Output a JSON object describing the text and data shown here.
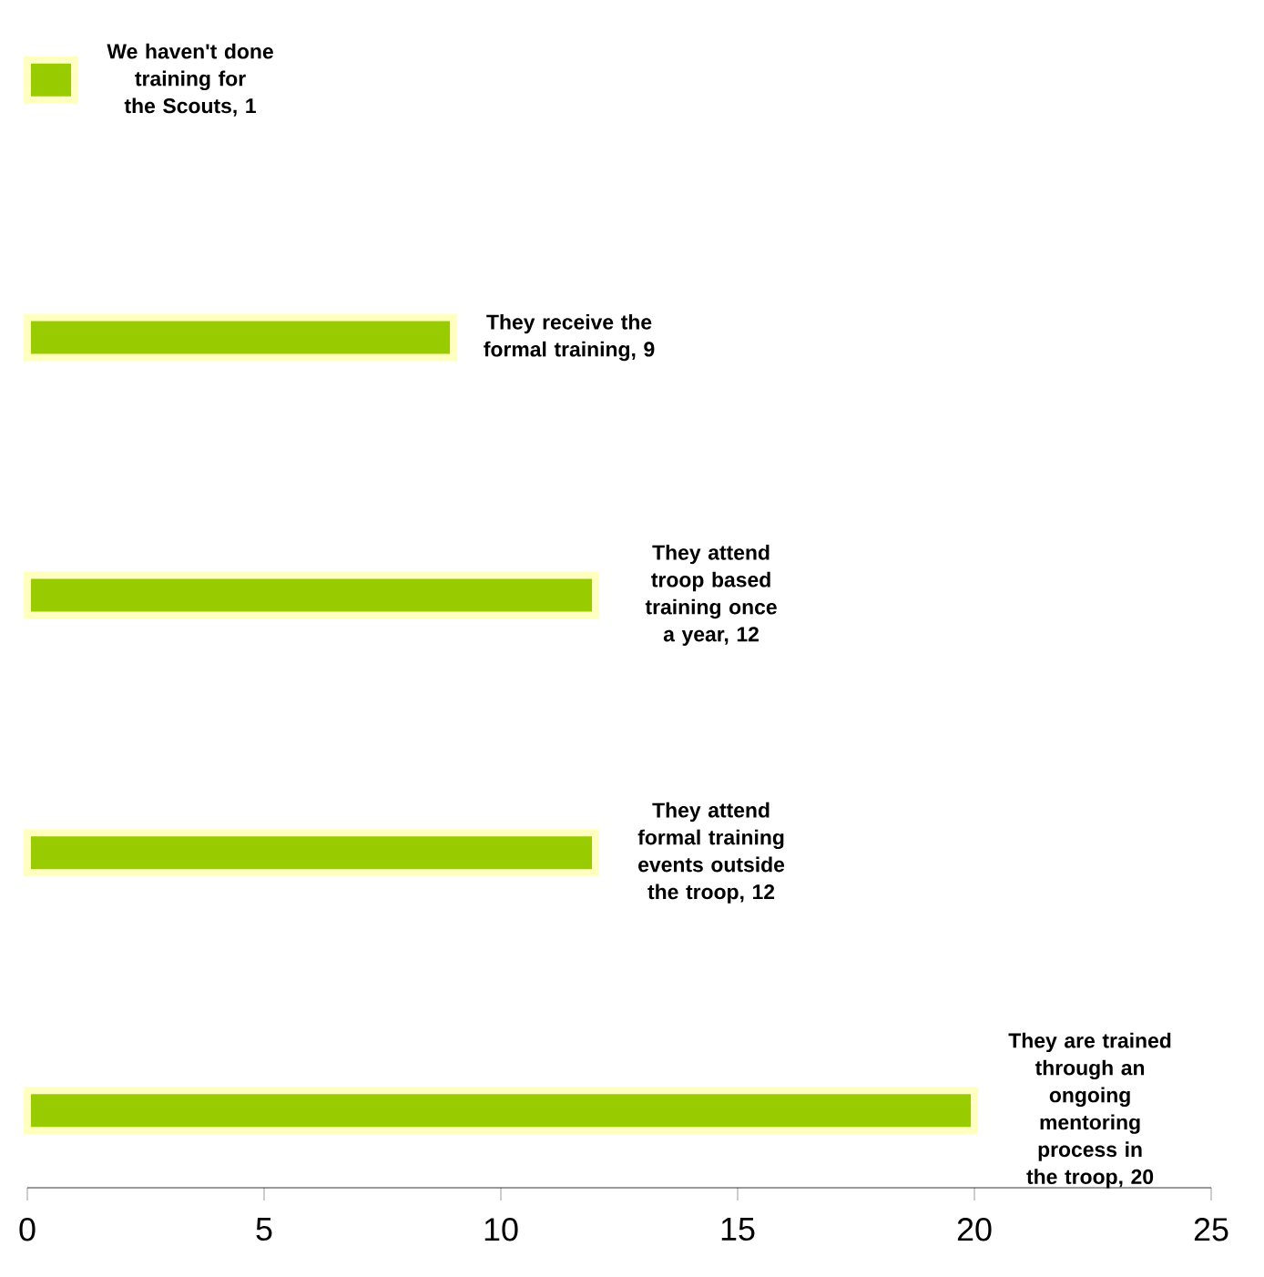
{
  "chart_data": {
    "type": "bar",
    "orientation": "horizontal",
    "categories": [
      null,
      null,
      null,
      null,
      null
    ],
    "values": [
      1,
      9,
      12,
      12,
      20
    ],
    "value_labels": [
      "We haven't done training for the Scouts, 1",
      "They receive the formal training, 9",
      "They attend troop based training once a year, 12",
      "They attend formal training events outside the troop, 12",
      "They are trained through an ongoing mentoring process in the troop, 20"
    ],
    "color": "#99cc00",
    "xlim": [
      0,
      25
    ],
    "xticks": [
      0,
      5,
      10,
      15,
      20,
      25
    ]
  }
}
